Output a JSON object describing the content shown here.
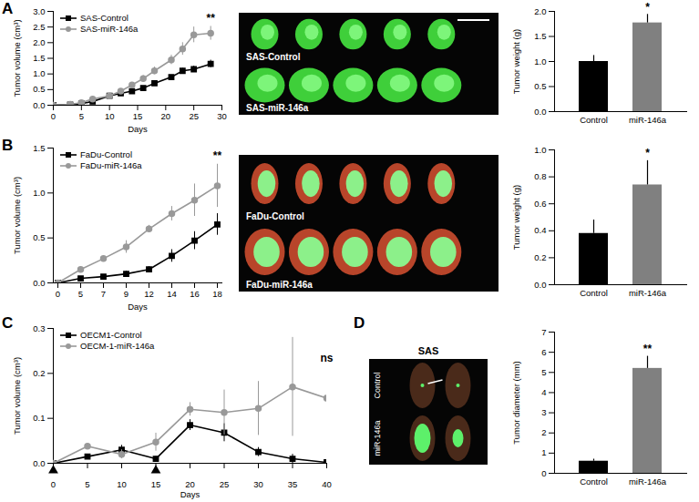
{
  "panel_labels": [
    "A",
    "B",
    "C",
    "D"
  ],
  "images": [
    {
      "panel": "A",
      "rows": [
        "SAS-Control",
        "SAS-miR-146a"
      ]
    },
    {
      "panel": "B",
      "rows": [
        "FaDu-Control",
        "FaDu-miR-146a"
      ]
    },
    {
      "panel": "D",
      "title": "SAS",
      "rows": [
        "Control",
        "miR-146a"
      ]
    }
  ],
  "chart_data": [
    {
      "panel": "A",
      "type": "line",
      "x_label": "Days",
      "y_label": "Tumor volume (cm³)",
      "x": [
        0,
        3,
        5,
        7,
        10,
        12,
        14,
        16,
        18,
        21,
        23,
        25,
        28
      ],
      "series": [
        {
          "name": "SAS-Control",
          "color": "#000000",
          "marker": "square",
          "values": [
            0,
            0.02,
            0.05,
            0.12,
            0.3,
            0.38,
            0.45,
            0.55,
            0.7,
            0.9,
            1.1,
            1.15,
            1.32
          ],
          "errors": [
            0,
            0.01,
            0.01,
            0.02,
            0.03,
            0.03,
            0.04,
            0.04,
            0.05,
            0.06,
            0.08,
            0.1,
            0.12
          ]
        },
        {
          "name": "SAS-miR-146a",
          "color": "#999999",
          "marker": "circle",
          "values": [
            0,
            0.03,
            0.08,
            0.2,
            0.3,
            0.45,
            0.65,
            0.85,
            1.1,
            1.45,
            1.8,
            2.25,
            2.3
          ],
          "errors": [
            0,
            0.01,
            0.02,
            0.03,
            0.04,
            0.05,
            0.08,
            0.1,
            0.12,
            0.15,
            0.2,
            0.25,
            0.22
          ]
        }
      ],
      "xlim": [
        0,
        30
      ],
      "xticks": [
        0,
        5,
        10,
        15,
        20,
        25,
        30
      ],
      "ylim": [
        0,
        3
      ],
      "yticks": [
        {
          "value": 0,
          "label": "0.0"
        },
        {
          "value": 0.5,
          "label": "0.5"
        },
        {
          "value": 1,
          "label": "1.0"
        },
        {
          "value": 1.5,
          "label": "1.5"
        },
        {
          "value": 2,
          "label": "2.0"
        },
        {
          "value": 2.5,
          "label": "2.5"
        },
        {
          "value": 3,
          "label": "3.0"
        }
      ],
      "legend": "upper left",
      "significance": "**"
    },
    {
      "panel": "A",
      "type": "bar",
      "y_label": "Tumor weight (g)",
      "categories": [
        "Control",
        "miR-146a"
      ],
      "values": [
        1.0,
        1.77
      ],
      "errors": [
        0.12,
        0.17
      ],
      "colors": [
        "#000000",
        "#808080"
      ],
      "ylim": [
        0,
        2
      ],
      "yticks": [
        {
          "value": 0,
          "label": "0.0"
        },
        {
          "value": 0.5,
          "label": "0.5"
        },
        {
          "value": 1,
          "label": "1.0"
        },
        {
          "value": 1.5,
          "label": "1.5"
        },
        {
          "value": 2,
          "label": "2.0"
        }
      ],
      "significance": "*"
    },
    {
      "panel": "B",
      "type": "line",
      "x_label": "Days",
      "y_label": "Tumor volume (cm³)",
      "categories": [
        "0",
        "5",
        "7",
        "9",
        "12",
        "14",
        "16",
        "18"
      ],
      "series": [
        {
          "name": "FaDu-Control",
          "color": "#000000",
          "marker": "square",
          "values": [
            0,
            0.05,
            0.07,
            0.1,
            0.15,
            0.3,
            0.47,
            0.65
          ],
          "errors": [
            0,
            0.01,
            0.02,
            0.03,
            0.03,
            0.07,
            0.1,
            0.12
          ]
        },
        {
          "name": "FaDu-miR-146a",
          "color": "#999999",
          "marker": "circle",
          "values": [
            0,
            0.15,
            0.27,
            0.4,
            0.6,
            0.77,
            0.92,
            1.08
          ],
          "errors": [
            0,
            0.03,
            0.03,
            0.07,
            0.04,
            0.08,
            0.18,
            0.24
          ]
        }
      ],
      "ylim": [
        0,
        1.5
      ],
      "yticks": [
        {
          "value": 0,
          "label": "0.0"
        },
        {
          "value": 0.5,
          "label": "0.5"
        },
        {
          "value": 1,
          "label": "1.0"
        },
        {
          "value": 1.5,
          "label": "1.5"
        }
      ],
      "legend": "upper left",
      "significance": "**"
    },
    {
      "panel": "B",
      "type": "bar",
      "y_label": "Tumor weight (g)",
      "categories": [
        "Control",
        "miR-146a"
      ],
      "values": [
        0.38,
        0.74
      ],
      "errors": [
        0.1,
        0.18
      ],
      "colors": [
        "#000000",
        "#808080"
      ],
      "ylim": [
        0,
        1
      ],
      "yticks": [
        {
          "value": 0,
          "label": "0.0"
        },
        {
          "value": 0.2,
          "label": "0.2"
        },
        {
          "value": 0.4,
          "label": "0.4"
        },
        {
          "value": 0.6,
          "label": "0.6"
        },
        {
          "value": 0.8,
          "label": "0.8"
        },
        {
          "value": 1,
          "label": "1.0"
        }
      ],
      "significance": "*"
    },
    {
      "panel": "C",
      "type": "line",
      "x_label": "Days",
      "y_label": "Tumor volume (cm³)",
      "x": [
        0,
        5,
        10,
        15,
        20,
        25,
        30,
        35,
        40
      ],
      "series": [
        {
          "name": "OECM1-Control",
          "color": "#000000",
          "marker": "square",
          "values": [
            0,
            0.015,
            0.03,
            0.01,
            0.085,
            0.068,
            0.025,
            0.01,
            0.002
          ],
          "errors": [
            0,
            0.005,
            0.01,
            0.005,
            0.012,
            0.02,
            0.01,
            0.01,
            0.002
          ]
        },
        {
          "name": "OECM-1-miR-146a",
          "color": "#999999",
          "marker": "circle",
          "values": [
            0,
            0.038,
            0.02,
            0.047,
            0.12,
            0.113,
            0.122,
            0.17,
            0.145
          ],
          "errors": [
            0,
            0.005,
            0.01,
            0.02,
            0.015,
            0.05,
            0.06,
            0.11,
            0.07
          ]
        }
      ],
      "xlim": [
        0,
        40
      ],
      "xticks": [
        0,
        5,
        10,
        15,
        20,
        25,
        30,
        35,
        40
      ],
      "ylim": [
        0,
        0.3
      ],
      "yticks": [
        {
          "value": 0,
          "label": "0.0"
        },
        {
          "value": 0.1,
          "label": "0.1"
        },
        {
          "value": 0.2,
          "label": "0.2"
        },
        {
          "value": 0.3,
          "label": "0.3"
        }
      ],
      "treatment_days": [
        0,
        15
      ],
      "legend": "upper left",
      "significance": "ns"
    },
    {
      "panel": "D",
      "type": "bar",
      "y_label": "Tumor diameter (mm)",
      "categories": [
        "Control",
        "miR-146a"
      ],
      "values": [
        0.6,
        5.2
      ],
      "errors": [
        0.1,
        0.6
      ],
      "colors": [
        "#000000",
        "#808080"
      ],
      "ylim": [
        0,
        7
      ],
      "yticks": [
        0,
        1,
        2,
        3,
        4,
        5,
        6,
        7
      ],
      "significance": "**"
    }
  ]
}
